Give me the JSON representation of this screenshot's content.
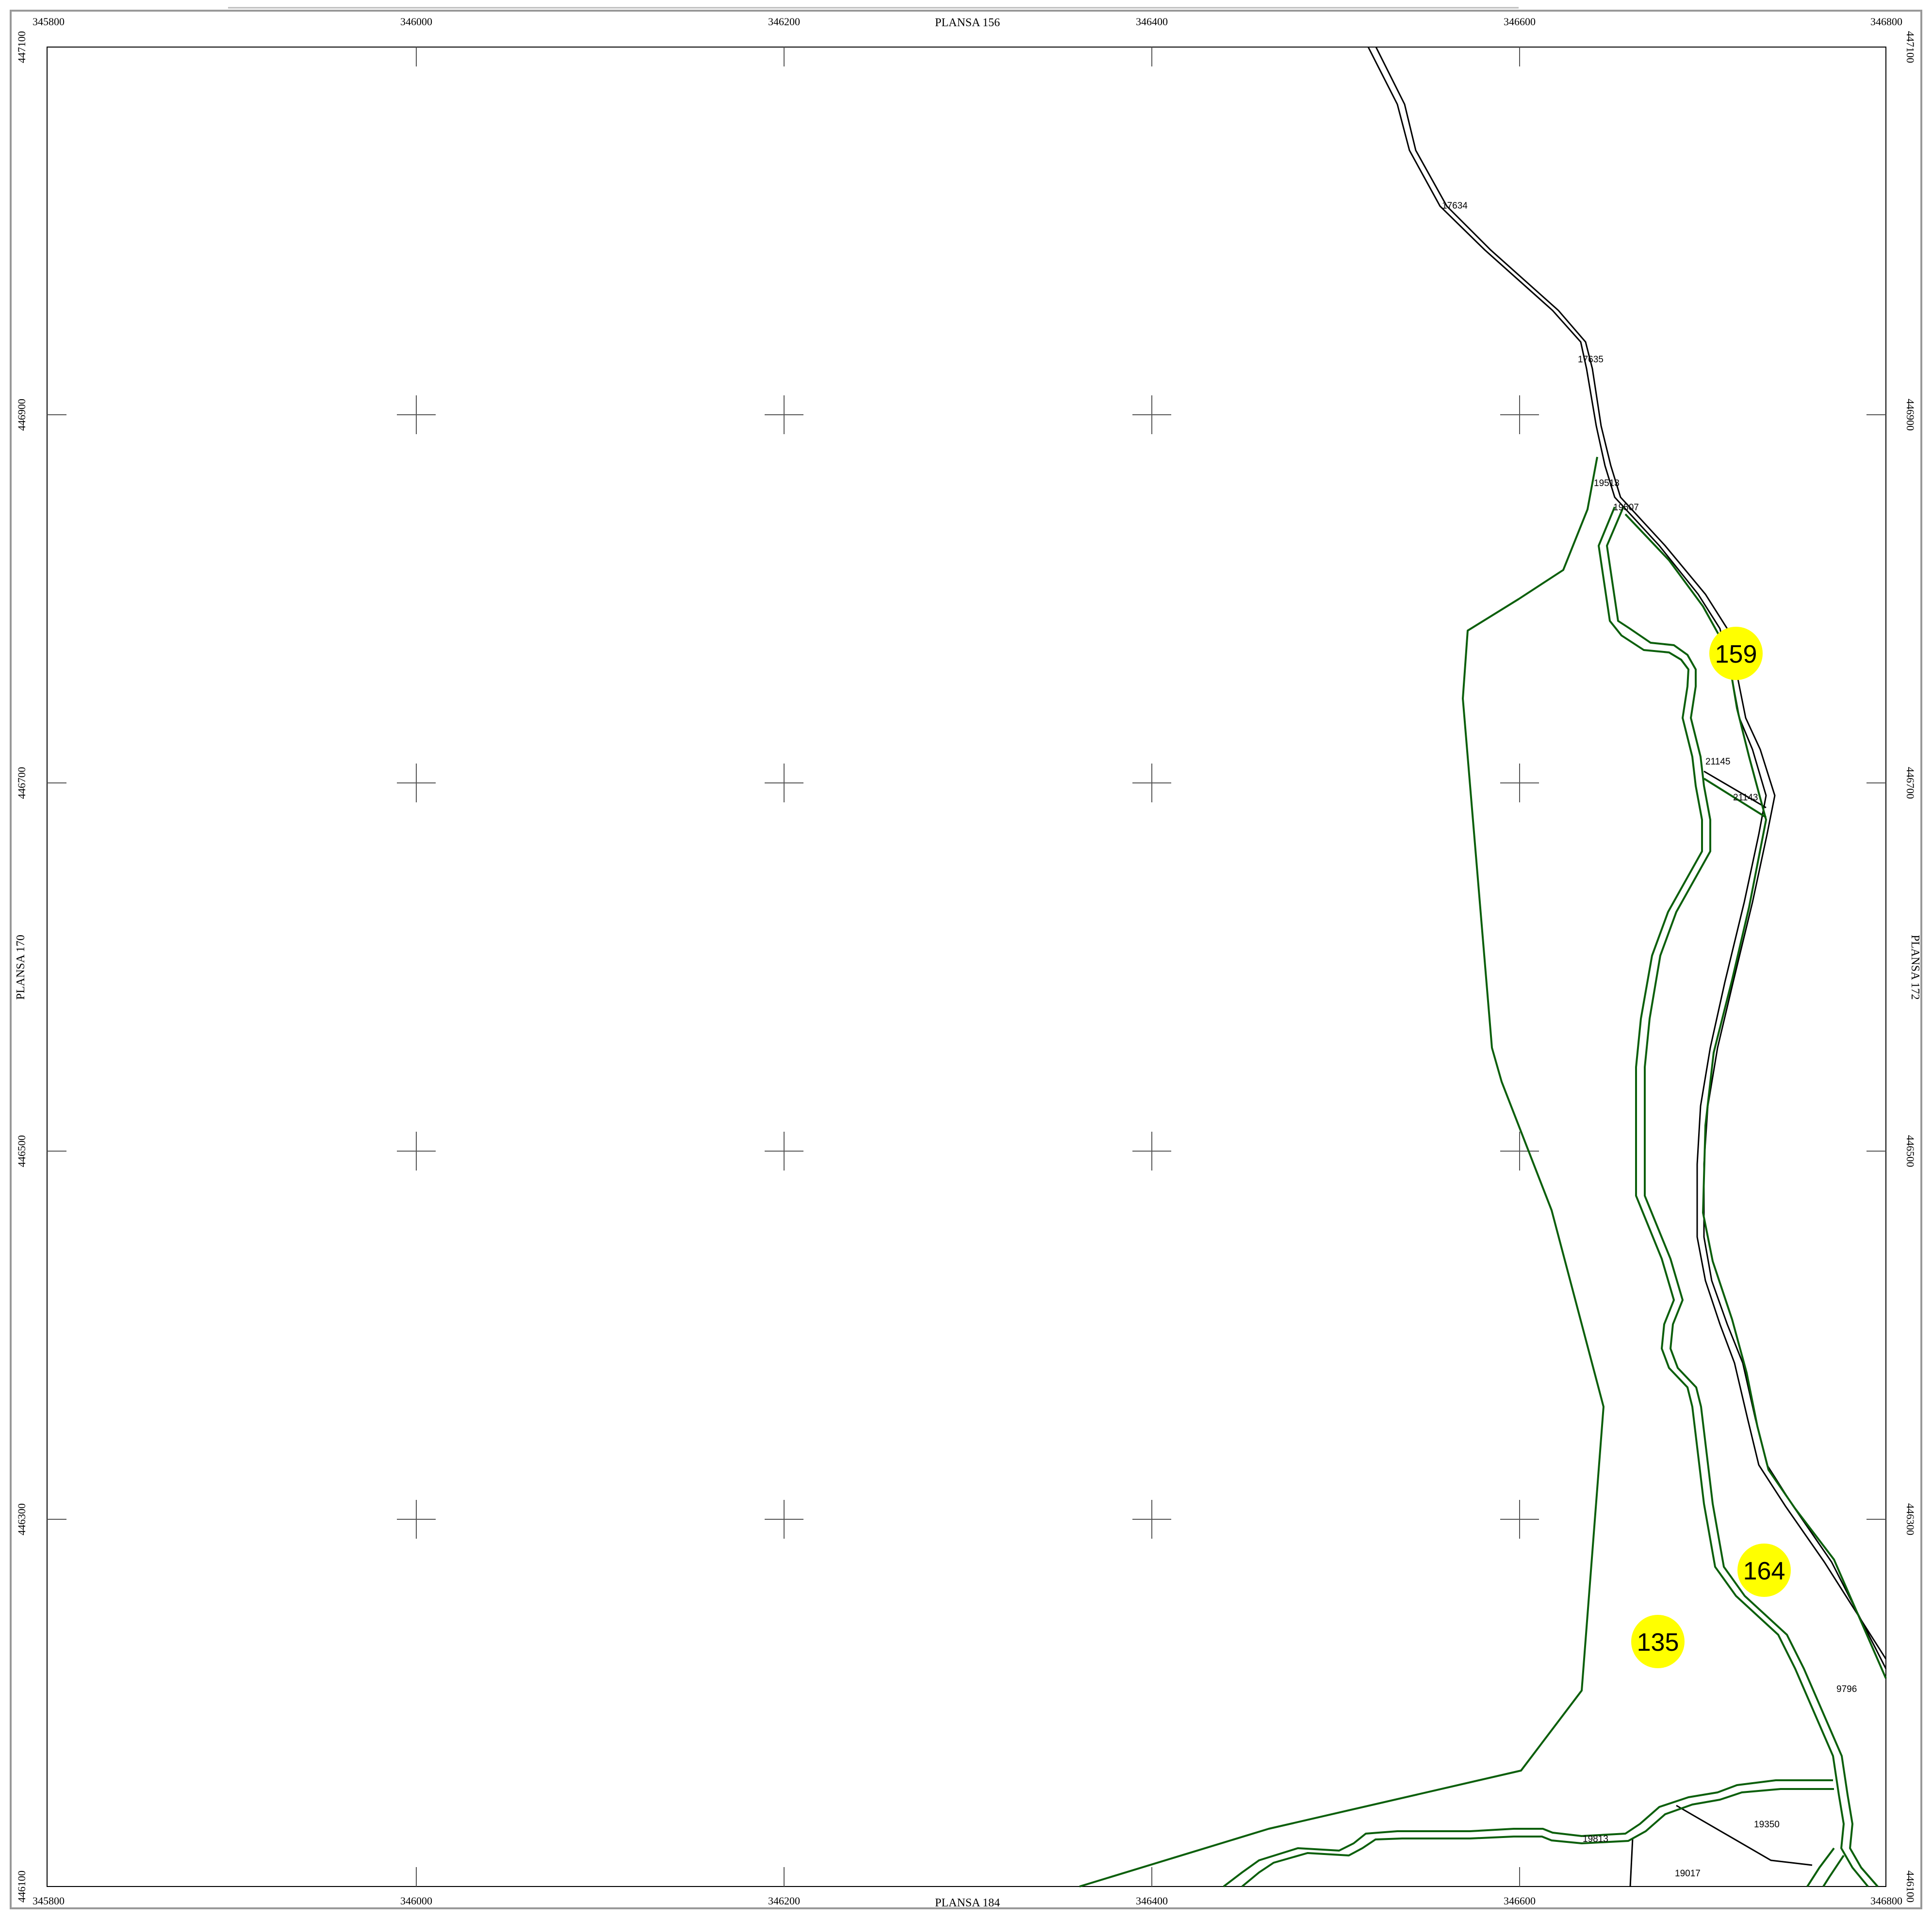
{
  "map": {
    "sheet_labels": {
      "top": "PLANSA  156",
      "bottom": "PLANSA  184",
      "left": "PLANSA  170",
      "right": "PLANSA  172"
    },
    "x_coordinates": [
      "345800",
      "346000",
      "346200",
      "346400",
      "346600",
      "346800"
    ],
    "y_coordinates": [
      "447100",
      "446900",
      "446700",
      "446500",
      "446300",
      "446100"
    ],
    "parcel_labels": [
      "17634",
      "17635",
      "19513",
      "19507",
      "21145",
      "21143",
      "9796",
      "19350",
      "19813",
      "19017"
    ],
    "highlighted_parcels": [
      "159",
      "164",
      "135"
    ],
    "colors": {
      "boundary_green": "#0b5f0b",
      "road_black": "#000000",
      "highlight_yellow": "#ffff00",
      "frame_gray": "#999999"
    }
  }
}
